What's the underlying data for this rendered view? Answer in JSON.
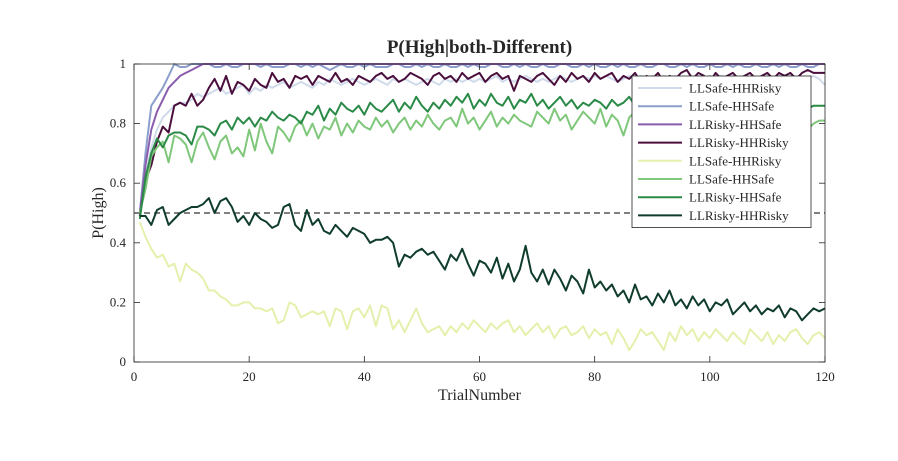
{
  "chart_data": {
    "type": "line",
    "title": "P(High|both-Different)",
    "xlabel": "TrialNumber",
    "ylabel": "P(High)",
    "xlim": [
      0,
      120
    ],
    "ylim": [
      0,
      1
    ],
    "xticks": [
      0,
      20,
      40,
      60,
      80,
      100,
      120
    ],
    "yticks": [
      0,
      0.2,
      0.4,
      0.6,
      0.8,
      1
    ],
    "ytick_labels": [
      "0",
      "0.2",
      "0.4",
      "0.6",
      "0.8",
      "1"
    ],
    "grid": false,
    "legend_position": "right",
    "reference_line": {
      "y": 0.5,
      "style": "dashed",
      "color": "#000000"
    },
    "series": [
      {
        "name": "LLSafe-HHRisky",
        "color": "#cfdaeb",
        "values": [
          0.49,
          0.62,
          0.72,
          0.78,
          0.82,
          0.84,
          0.86,
          0.87,
          0.87,
          0.88,
          0.9,
          0.89,
          0.9,
          0.91,
          0.92,
          0.9,
          0.91,
          0.92,
          0.93,
          0.9,
          0.92,
          0.91,
          0.93,
          0.92,
          0.93,
          0.94,
          0.92,
          0.93,
          0.94,
          0.93,
          0.92,
          0.94,
          0.93,
          0.95,
          0.94,
          0.93,
          0.94,
          0.95,
          0.94,
          0.93,
          0.94,
          0.95,
          0.94,
          0.93,
          0.95,
          0.94,
          0.95,
          0.94,
          0.93,
          0.94,
          0.95,
          0.94,
          0.93,
          0.95,
          0.94,
          0.95,
          0.94,
          0.95,
          0.94,
          0.95,
          0.94,
          0.95,
          0.96,
          0.94,
          0.95,
          0.94,
          0.95,
          0.96,
          0.95,
          0.94,
          0.95,
          0.94,
          0.95,
          0.96,
          0.95,
          0.94,
          0.95,
          0.96,
          0.95,
          0.96,
          0.95,
          0.96,
          0.95,
          0.94,
          0.95,
          0.96,
          0.95,
          0.96,
          0.95,
          0.96,
          0.95,
          0.96,
          0.95,
          0.96,
          0.95,
          0.94,
          0.95,
          0.96,
          0.95,
          0.96,
          0.95,
          0.96,
          0.95,
          0.96,
          0.95,
          0.96,
          0.95,
          0.94,
          0.95,
          0.96,
          0.95,
          0.96,
          0.95,
          0.96,
          0.95,
          0.94,
          0.95,
          0.96,
          0.95,
          0.93
        ]
      },
      {
        "name": "LLSafe-HHSafe",
        "color": "#8c9fcc",
        "values": [
          0.5,
          0.7,
          0.86,
          0.89,
          0.92,
          0.96,
          1.0,
          0.99,
          0.99,
          1.0,
          1.0,
          1.0,
          1.0,
          0.99,
          0.99,
          1.0,
          0.99,
          0.99,
          1.0,
          1.0,
          1.0,
          0.99,
          1.0,
          0.99,
          0.99,
          0.99,
          1.0,
          1.0,
          0.99,
          1.0,
          0.99,
          1.0,
          0.99,
          0.98,
          0.99,
          1.0,
          0.99,
          0.99,
          1.0,
          0.99,
          1.0,
          0.99,
          0.99,
          0.99,
          1.0,
          1.0,
          0.99,
          0.99,
          1.0,
          0.99,
          1.0,
          0.99,
          0.99,
          1.0,
          0.99,
          0.99,
          1.0,
          0.99,
          1.0,
          0.99,
          0.99,
          1.0,
          1.0,
          0.99,
          0.99,
          1.0,
          0.99,
          1.0,
          0.99,
          0.99,
          1.0,
          0.99,
          0.99,
          1.0,
          1.0,
          0.99,
          0.99,
          1.0,
          0.99,
          1.0,
          0.99,
          0.99,
          1.0,
          0.99,
          1.0,
          0.99,
          0.99,
          1.0,
          0.99,
          0.99,
          1.0,
          1.0,
          0.99,
          0.99,
          1.0,
          0.99,
          1.0,
          0.99,
          0.99,
          1.0,
          0.99,
          0.99,
          1.0,
          0.99,
          1.0,
          0.99,
          0.99,
          1.0,
          0.99,
          0.99,
          1.0,
          0.99,
          1.0,
          0.99,
          0.99,
          1.0,
          0.99,
          0.99,
          1.0,
          1.0
        ]
      },
      {
        "name": "LLRisky-HHSafe",
        "color": "#8a5cad",
        "values": [
          0.5,
          0.66,
          0.78,
          0.84,
          0.88,
          0.92,
          0.94,
          0.96,
          0.97,
          0.98,
          0.99,
          1.0,
          1.0,
          1.0,
          1.0,
          1.0,
          1.0,
          1.0,
          1.0,
          1.0,
          1.0,
          1.0,
          1.0,
          1.0,
          1.0,
          1.0,
          1.0,
          1.0,
          1.0,
          1.0,
          1.0,
          1.0,
          1.0,
          1.0,
          1.0,
          1.0,
          1.0,
          1.0,
          1.0,
          1.0,
          1.0,
          1.0,
          1.0,
          1.0,
          1.0,
          1.0,
          1.0,
          1.0,
          1.0,
          1.0,
          1.0,
          1.0,
          1.0,
          1.0,
          1.0,
          1.0,
          1.0,
          1.0,
          1.0,
          1.0,
          1.0,
          1.0,
          1.0,
          1.0,
          1.0,
          1.0,
          1.0,
          1.0,
          1.0,
          1.0,
          1.0,
          1.0,
          1.0,
          1.0,
          1.0,
          1.0,
          1.0,
          1.0,
          1.0,
          1.0,
          1.0,
          1.0,
          1.0,
          1.0,
          1.0,
          1.0,
          1.0,
          1.0,
          1.0,
          1.0,
          1.0,
          1.0,
          1.0,
          1.0,
          1.0,
          1.0,
          1.0,
          1.0,
          1.0,
          1.0,
          1.0,
          1.0,
          1.0,
          1.0,
          1.0,
          1.0,
          1.0,
          1.0,
          1.0,
          1.0,
          1.0,
          1.0,
          1.0,
          1.0,
          1.0,
          1.0,
          1.0,
          1.0,
          1.0,
          1.0
        ]
      },
      {
        "name": "LLRisky-HHRisky",
        "color": "#4a0f3c",
        "values": [
          0.49,
          0.61,
          0.66,
          0.74,
          0.79,
          0.77,
          0.86,
          0.87,
          0.86,
          0.9,
          0.86,
          0.88,
          0.92,
          0.95,
          0.91,
          0.96,
          0.9,
          0.94,
          0.93,
          0.91,
          0.95,
          0.93,
          0.92,
          0.97,
          0.94,
          0.95,
          0.92,
          0.96,
          0.95,
          0.96,
          0.93,
          0.96,
          0.95,
          0.94,
          0.97,
          0.94,
          0.95,
          0.93,
          0.96,
          0.95,
          0.94,
          0.96,
          0.97,
          0.95,
          0.96,
          0.94,
          0.95,
          0.97,
          0.96,
          0.95,
          0.93,
          0.96,
          0.97,
          0.95,
          0.96,
          0.94,
          0.97,
          0.95,
          0.96,
          0.97,
          0.94,
          0.96,
          0.97,
          0.95,
          0.96,
          0.91,
          0.96,
          0.95,
          0.94,
          0.96,
          0.97,
          0.95,
          0.93,
          0.96,
          0.94,
          0.97,
          0.95,
          0.96,
          0.94,
          0.97,
          0.95,
          0.96,
          0.97,
          0.94,
          0.96,
          0.95,
          0.97,
          0.94,
          0.96,
          0.95,
          0.97,
          0.94,
          0.96,
          0.95,
          0.97,
          0.98,
          0.95,
          0.97,
          0.96,
          0.94,
          0.97,
          0.95,
          0.96,
          0.97,
          0.95,
          0.96,
          0.97,
          0.95,
          0.96,
          0.97,
          0.95,
          0.97,
          0.96,
          0.97,
          0.95,
          0.97,
          0.98,
          0.97,
          0.97,
          0.97
        ]
      },
      {
        "name": "LLSafe-HHRisky",
        "color": "#e5f0ad",
        "values": [
          0.47,
          0.42,
          0.38,
          0.35,
          0.36,
          0.32,
          0.33,
          0.27,
          0.33,
          0.31,
          0.3,
          0.28,
          0.24,
          0.24,
          0.22,
          0.21,
          0.19,
          0.19,
          0.2,
          0.2,
          0.18,
          0.18,
          0.17,
          0.18,
          0.13,
          0.14,
          0.2,
          0.19,
          0.15,
          0.16,
          0.17,
          0.16,
          0.17,
          0.12,
          0.18,
          0.17,
          0.11,
          0.17,
          0.18,
          0.15,
          0.19,
          0.12,
          0.19,
          0.18,
          0.11,
          0.14,
          0.1,
          0.14,
          0.18,
          0.13,
          0.1,
          0.11,
          0.12,
          0.09,
          0.12,
          0.1,
          0.13,
          0.11,
          0.14,
          0.12,
          0.1,
          0.13,
          0.11,
          0.13,
          0.14,
          0.1,
          0.12,
          0.09,
          0.11,
          0.13,
          0.1,
          0.12,
          0.08,
          0.11,
          0.12,
          0.09,
          0.1,
          0.12,
          0.08,
          0.11,
          0.09,
          0.1,
          0.06,
          0.11,
          0.08,
          0.04,
          0.07,
          0.11,
          0.09,
          0.1,
          0.07,
          0.04,
          0.1,
          0.07,
          0.12,
          0.09,
          0.11,
          0.07,
          0.1,
          0.08,
          0.11,
          0.09,
          0.07,
          0.1,
          0.08,
          0.06,
          0.11,
          0.09,
          0.07,
          0.1,
          0.06,
          0.09,
          0.07,
          0.1,
          0.11,
          0.08,
          0.06,
          0.09,
          0.1,
          0.08
        ]
      },
      {
        "name": "LLSafe-HHSafe",
        "color": "#7fc77a",
        "values": [
          0.5,
          0.58,
          0.69,
          0.72,
          0.74,
          0.67,
          0.76,
          0.75,
          0.73,
          0.67,
          0.74,
          0.77,
          0.72,
          0.68,
          0.74,
          0.76,
          0.7,
          0.72,
          0.69,
          0.78,
          0.71,
          0.8,
          0.74,
          0.7,
          0.79,
          0.77,
          0.74,
          0.79,
          0.81,
          0.76,
          0.8,
          0.75,
          0.79,
          0.78,
          0.82,
          0.76,
          0.8,
          0.77,
          0.81,
          0.79,
          0.78,
          0.82,
          0.79,
          0.81,
          0.77,
          0.8,
          0.82,
          0.78,
          0.81,
          0.79,
          0.83,
          0.8,
          0.78,
          0.81,
          0.82,
          0.79,
          0.85,
          0.8,
          0.82,
          0.78,
          0.81,
          0.84,
          0.79,
          0.82,
          0.8,
          0.83,
          0.81,
          0.8,
          0.79,
          0.84,
          0.82,
          0.8,
          0.85,
          0.81,
          0.83,
          0.78,
          0.81,
          0.84,
          0.82,
          0.8,
          0.85,
          0.79,
          0.83,
          0.81,
          0.76,
          0.82,
          0.84,
          0.8,
          0.78,
          0.82,
          0.8,
          0.77,
          0.81,
          0.83,
          0.79,
          0.82,
          0.8,
          0.78,
          0.81,
          0.83,
          0.79,
          0.82,
          0.81,
          0.78,
          0.8,
          0.82,
          0.79,
          0.83,
          0.81,
          0.8,
          0.78,
          0.82,
          0.8,
          0.79,
          0.81,
          0.83,
          0.78,
          0.8,
          0.81,
          0.81
        ]
      },
      {
        "name": "LLRisky-HHSafe",
        "color": "#2b8a47",
        "values": [
          0.48,
          0.62,
          0.7,
          0.75,
          0.72,
          0.76,
          0.77,
          0.77,
          0.76,
          0.73,
          0.79,
          0.79,
          0.78,
          0.76,
          0.8,
          0.81,
          0.78,
          0.82,
          0.8,
          0.82,
          0.79,
          0.82,
          0.81,
          0.84,
          0.82,
          0.81,
          0.83,
          0.82,
          0.8,
          0.84,
          0.83,
          0.86,
          0.81,
          0.85,
          0.83,
          0.87,
          0.85,
          0.84,
          0.86,
          0.83,
          0.87,
          0.85,
          0.84,
          0.86,
          0.88,
          0.84,
          0.87,
          0.85,
          0.89,
          0.86,
          0.84,
          0.87,
          0.85,
          0.88,
          0.86,
          0.89,
          0.87,
          0.9,
          0.85,
          0.88,
          0.86,
          0.9,
          0.87,
          0.86,
          0.89,
          0.85,
          0.88,
          0.87,
          0.9,
          0.86,
          0.88,
          0.85,
          0.87,
          0.89,
          0.86,
          0.88,
          0.85,
          0.87,
          0.86,
          0.88,
          0.87,
          0.85,
          0.88,
          0.86,
          0.87,
          0.89,
          0.86,
          0.88,
          0.85,
          0.87,
          0.86,
          0.88,
          0.87,
          0.85,
          0.88,
          0.86,
          0.89,
          0.87,
          0.85,
          0.88,
          0.86,
          0.87,
          0.88,
          0.85,
          0.87,
          0.86,
          0.88,
          0.85,
          0.87,
          0.86,
          0.88,
          0.87,
          0.85,
          0.86,
          0.88,
          0.87,
          0.85,
          0.86,
          0.86,
          0.86
        ]
      },
      {
        "name": "LLRisky-HHRisky",
        "color": "#103d2b",
        "values": [
          0.49,
          0.49,
          0.46,
          0.51,
          0.52,
          0.46,
          0.48,
          0.5,
          0.51,
          0.52,
          0.52,
          0.53,
          0.55,
          0.5,
          0.54,
          0.55,
          0.52,
          0.47,
          0.49,
          0.46,
          0.5,
          0.48,
          0.47,
          0.45,
          0.46,
          0.52,
          0.53,
          0.46,
          0.44,
          0.51,
          0.46,
          0.48,
          0.44,
          0.43,
          0.46,
          0.44,
          0.42,
          0.45,
          0.44,
          0.43,
          0.4,
          0.41,
          0.41,
          0.42,
          0.4,
          0.32,
          0.36,
          0.35,
          0.37,
          0.38,
          0.36,
          0.37,
          0.34,
          0.31,
          0.36,
          0.34,
          0.38,
          0.33,
          0.29,
          0.34,
          0.33,
          0.3,
          0.35,
          0.28,
          0.33,
          0.27,
          0.31,
          0.39,
          0.3,
          0.27,
          0.31,
          0.26,
          0.31,
          0.28,
          0.24,
          0.29,
          0.27,
          0.23,
          0.31,
          0.25,
          0.27,
          0.24,
          0.26,
          0.22,
          0.24,
          0.2,
          0.26,
          0.21,
          0.22,
          0.19,
          0.23,
          0.2,
          0.24,
          0.19,
          0.21,
          0.18,
          0.22,
          0.19,
          0.21,
          0.17,
          0.2,
          0.19,
          0.21,
          0.16,
          0.18,
          0.2,
          0.17,
          0.19,
          0.16,
          0.18,
          0.17,
          0.19,
          0.15,
          0.18,
          0.17,
          0.14,
          0.16,
          0.18,
          0.17,
          0.18
        ]
      }
    ]
  }
}
